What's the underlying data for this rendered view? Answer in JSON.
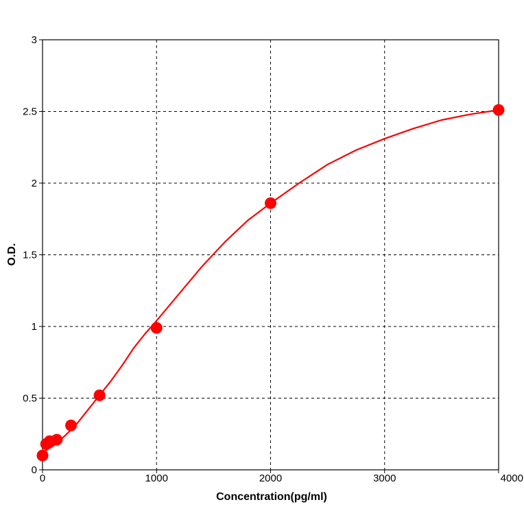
{
  "chart_data": {
    "type": "scatter",
    "title": "",
    "xlabel": "Concentration(pg/ml)",
    "ylabel": "O.D.",
    "xlim": [
      0,
      4000
    ],
    "ylim": [
      0,
      3
    ],
    "xticks": [
      0,
      1000,
      2000,
      3000,
      4000
    ],
    "yticks": [
      0,
      0.5,
      1,
      1.5,
      2,
      2.5,
      3
    ],
    "xtick_labels": [
      "0",
      "1000",
      "2000",
      "3000",
      "4000"
    ],
    "ytick_labels": [
      "0",
      "0.5",
      "1",
      "1.5",
      "2",
      "2.5",
      "3"
    ],
    "grid": true,
    "colors": {
      "series": "#ff0000",
      "grid": "#000000",
      "axis": "#000000"
    },
    "series": [
      {
        "points": [
          {
            "x": 0,
            "y": 0.1
          },
          {
            "x": 31.25,
            "y": 0.18
          },
          {
            "x": 62.5,
            "y": 0.2
          },
          {
            "x": 125,
            "y": 0.21
          },
          {
            "x": 250,
            "y": 0.31
          },
          {
            "x": 500,
            "y": 0.52
          },
          {
            "x": 1000,
            "y": 0.99
          },
          {
            "x": 2000,
            "y": 1.86
          },
          {
            "x": 4000,
            "y": 2.51
          }
        ],
        "fit_curve": [
          {
            "x": 0,
            "y": 0.12
          },
          {
            "x": 100,
            "y": 0.17
          },
          {
            "x": 200,
            "y": 0.24
          },
          {
            "x": 300,
            "y": 0.32
          },
          {
            "x": 400,
            "y": 0.42
          },
          {
            "x": 500,
            "y": 0.52
          },
          {
            "x": 600,
            "y": 0.62
          },
          {
            "x": 700,
            "y": 0.73
          },
          {
            "x": 800,
            "y": 0.85
          },
          {
            "x": 900,
            "y": 0.95
          },
          {
            "x": 1000,
            "y": 1.04
          },
          {
            "x": 1200,
            "y": 1.23
          },
          {
            "x": 1400,
            "y": 1.42
          },
          {
            "x": 1600,
            "y": 1.59
          },
          {
            "x": 1800,
            "y": 1.74
          },
          {
            "x": 2000,
            "y": 1.86
          },
          {
            "x": 2250,
            "y": 2.0
          },
          {
            "x": 2500,
            "y": 2.13
          },
          {
            "x": 2750,
            "y": 2.23
          },
          {
            "x": 3000,
            "y": 2.31
          },
          {
            "x": 3250,
            "y": 2.38
          },
          {
            "x": 3500,
            "y": 2.44
          },
          {
            "x": 3750,
            "y": 2.48
          },
          {
            "x": 4000,
            "y": 2.51
          }
        ]
      }
    ]
  }
}
